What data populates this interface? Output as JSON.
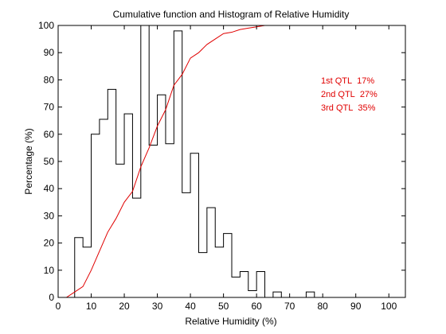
{
  "chart_data": {
    "type": "line",
    "title": "Cumulative function and Histogram of Relative Humidity",
    "xlabel": "Relative Humidity (%)",
    "ylabel": "Percentage (%)",
    "xlim": [
      0,
      105
    ],
    "ylim": [
      0,
      100
    ],
    "xticks": [
      "0",
      "10",
      "20",
      "30",
      "40",
      "50",
      "60",
      "70",
      "80",
      "90",
      "100"
    ],
    "yticks": [
      "0",
      "10",
      "20",
      "30",
      "40",
      "50",
      "60",
      "70",
      "80",
      "90",
      "100"
    ],
    "grid": false,
    "series": [
      {
        "kind": "histogram-stairs",
        "color": "#000000",
        "bin_width": 2.5,
        "bin_edges_start": 5,
        "values": [
          22,
          18.5,
          60,
          65.5,
          76.5,
          49,
          67.5,
          36.5,
          100,
          56,
          74.5,
          56.5,
          98,
          38.5,
          53,
          16.5,
          33,
          18.5,
          23.5,
          7.5,
          9.5,
          2.5,
          9.5,
          0,
          2,
          0,
          0,
          0,
          2,
          0
        ]
      },
      {
        "kind": "cumulative",
        "color": "#e00000",
        "x": [
          0,
          2.5,
          5,
          7.5,
          10,
          12.5,
          15,
          17.5,
          20,
          22.5,
          25,
          27.5,
          30,
          32.5,
          35,
          37.5,
          40,
          42.5,
          45,
          47.5,
          50,
          52.5,
          55,
          57.5,
          60,
          62.5,
          65,
          70,
          75,
          80,
          85,
          90,
          95,
          100,
          105
        ],
        "y": [
          0,
          0,
          2,
          4,
          10,
          17,
          24,
          29,
          35,
          39,
          48,
          55,
          63,
          69,
          78,
          82,
          88,
          90,
          93,
          95,
          97,
          97.5,
          98.5,
          99,
          99.5,
          100,
          100,
          100,
          100,
          100,
          100,
          100,
          100,
          100,
          100
        ]
      }
    ],
    "annotations": [
      {
        "label": "1st QTL",
        "value": "17%"
      },
      {
        "label": "2nd QTL",
        "value": "27%"
      },
      {
        "label": "3rd QTL",
        "value": "35%"
      }
    ],
    "annotation_color": "#e00000"
  }
}
